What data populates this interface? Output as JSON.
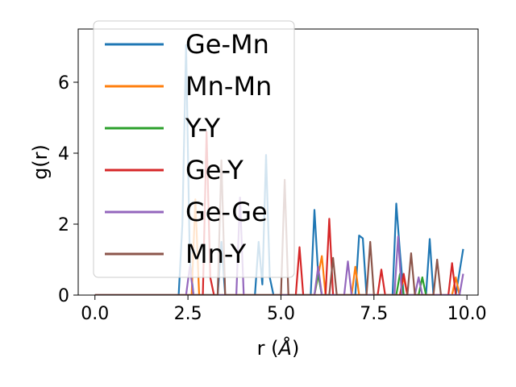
{
  "chart_data": {
    "type": "line",
    "title": "",
    "xlabel": "r (",
    "xlabel_unit": "Å",
    "xlabel_close": ")",
    "ylabel": "g(r)",
    "xlim": [
      -0.45,
      10.3
    ],
    "ylim": [
      0,
      7.5
    ],
    "xticks": [
      0.0,
      2.5,
      5.0,
      7.5,
      10.0
    ],
    "xtick_labels": [
      "0.0",
      "2.5",
      "5.0",
      "7.5",
      "10.0"
    ],
    "yticks": [
      0,
      2,
      4,
      6
    ],
    "ytick_labels": [
      "0",
      "2",
      "4",
      "6"
    ],
    "grid": false,
    "legend_position": "upper-left",
    "series": [
      {
        "name": "Ge-Mn",
        "color": "#1f77b4",
        "points": [
          [
            0,
            0
          ],
          [
            2.25,
            0
          ],
          [
            2.35,
            2.0
          ],
          [
            2.45,
            7.05
          ],
          [
            2.55,
            1.0
          ],
          [
            2.65,
            0
          ],
          [
            3.3,
            0
          ],
          [
            3.4,
            1.5
          ],
          [
            3.5,
            0
          ],
          [
            4.3,
            0
          ],
          [
            4.4,
            1.5
          ],
          [
            4.5,
            0.3
          ],
          [
            4.6,
            3.95
          ],
          [
            4.7,
            0.5
          ],
          [
            4.8,
            0
          ],
          [
            5.8,
            0
          ],
          [
            5.9,
            2.4
          ],
          [
            6.0,
            0.6
          ],
          [
            6.1,
            0
          ],
          [
            7.0,
            0
          ],
          [
            7.1,
            1.68
          ],
          [
            7.2,
            1.6
          ],
          [
            7.3,
            0
          ],
          [
            8.0,
            0
          ],
          [
            8.1,
            2.58
          ],
          [
            8.2,
            1.2
          ],
          [
            8.3,
            0
          ],
          [
            8.9,
            0
          ],
          [
            9.0,
            1.58
          ],
          [
            9.1,
            0
          ],
          [
            9.7,
            0
          ],
          [
            9.9,
            1.3
          ]
        ]
      },
      {
        "name": "Mn-Mn",
        "color": "#ff7f0e",
        "points": [
          [
            0,
            0
          ],
          [
            2.6,
            0
          ],
          [
            2.7,
            2.7
          ],
          [
            2.8,
            0
          ],
          [
            5.9,
            0
          ],
          [
            6.1,
            1.1
          ],
          [
            6.2,
            0
          ],
          [
            6.9,
            0
          ],
          [
            7.0,
            0.8
          ],
          [
            7.1,
            0
          ],
          [
            8.2,
            0
          ],
          [
            8.3,
            0.5
          ],
          [
            8.4,
            0
          ],
          [
            9.6,
            0
          ],
          [
            9.7,
            0.5
          ],
          [
            9.8,
            0
          ]
        ]
      },
      {
        "name": "Y-Y",
        "color": "#2ca02c",
        "points": [
          [
            0,
            0
          ],
          [
            5.9,
            0
          ],
          [
            6.0,
            0.6
          ],
          [
            6.1,
            0
          ],
          [
            8.1,
            0
          ],
          [
            8.2,
            0.6
          ],
          [
            8.3,
            0
          ],
          [
            8.7,
            0
          ],
          [
            8.8,
            0.5
          ],
          [
            8.9,
            0
          ]
        ]
      },
      {
        "name": "Ge-Y",
        "color": "#d62728",
        "points": [
          [
            0,
            0
          ],
          [
            2.9,
            0
          ],
          [
            3.0,
            4.6
          ],
          [
            3.1,
            0.5
          ],
          [
            3.2,
            0
          ],
          [
            5.4,
            0
          ],
          [
            5.5,
            1.35
          ],
          [
            5.6,
            0
          ],
          [
            6.2,
            0
          ],
          [
            6.3,
            2.15
          ],
          [
            6.4,
            0
          ],
          [
            7.6,
            0
          ],
          [
            7.7,
            0.72
          ],
          [
            7.8,
            0
          ],
          [
            8.2,
            0
          ],
          [
            8.3,
            0.6
          ],
          [
            8.4,
            0
          ],
          [
            9.5,
            0
          ],
          [
            9.6,
            0.9
          ],
          [
            9.7,
            0
          ]
        ]
      },
      {
        "name": "Ge-Ge",
        "color": "#9467bd",
        "points": [
          [
            0,
            0
          ],
          [
            2.45,
            0
          ],
          [
            2.55,
            0.8
          ],
          [
            2.65,
            0
          ],
          [
            3.8,
            0
          ],
          [
            3.9,
            2.75
          ],
          [
            4.0,
            0
          ],
          [
            5.9,
            0
          ],
          [
            6.0,
            0.8
          ],
          [
            6.1,
            0
          ],
          [
            6.7,
            0
          ],
          [
            6.8,
            0.95
          ],
          [
            6.9,
            0
          ],
          [
            8.05,
            0
          ],
          [
            8.15,
            1.65
          ],
          [
            8.25,
            0
          ],
          [
            8.6,
            0
          ],
          [
            8.7,
            0.5
          ],
          [
            8.8,
            0
          ],
          [
            9.8,
            0
          ],
          [
            9.9,
            0.6
          ]
        ]
      },
      {
        "name": "Mn-Y",
        "color": "#8c564b",
        "points": [
          [
            0,
            0
          ],
          [
            3.3,
            0
          ],
          [
            3.4,
            3.8
          ],
          [
            3.5,
            0
          ],
          [
            5.0,
            0
          ],
          [
            5.1,
            3.25
          ],
          [
            5.2,
            0
          ],
          [
            6.3,
            0
          ],
          [
            6.4,
            1.05
          ],
          [
            6.5,
            0
          ],
          [
            7.3,
            0
          ],
          [
            7.4,
            1.5
          ],
          [
            7.5,
            0
          ],
          [
            8.4,
            0
          ],
          [
            8.5,
            1.18
          ],
          [
            8.6,
            0
          ],
          [
            9.1,
            0
          ],
          [
            9.2,
            1.0
          ],
          [
            9.3,
            0
          ]
        ]
      }
    ]
  }
}
